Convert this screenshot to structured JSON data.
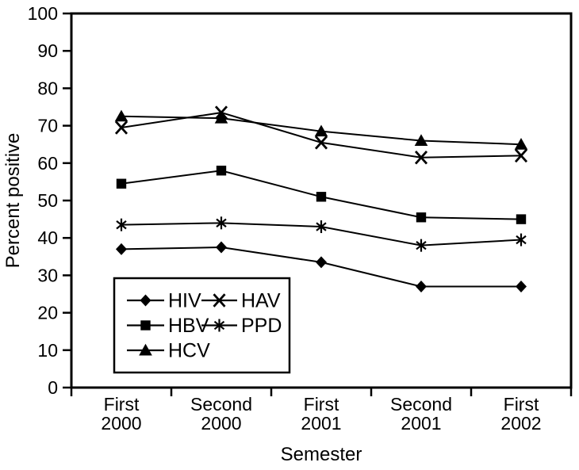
{
  "figure": {
    "background": "#ffffff",
    "ink_color": "#000000"
  },
  "chart_data": {
    "type": "line",
    "title": "",
    "xlabel": "Semester",
    "ylabel": "Percent positive",
    "ylim": [
      0,
      100
    ],
    "yticks": [
      0,
      10,
      20,
      30,
      40,
      50,
      60,
      70,
      80,
      90,
      100
    ],
    "grid": false,
    "categories": [
      [
        "First",
        "2000"
      ],
      [
        "Second",
        "2000"
      ],
      [
        "First",
        "2001"
      ],
      [
        "Second",
        "2001"
      ],
      [
        "First",
        "2002"
      ]
    ],
    "series": [
      {
        "name": "HIV",
        "marker": "diamond",
        "color": "#000000",
        "values": [
          37,
          37.5,
          33.5,
          27,
          27
        ]
      },
      {
        "name": "HBV",
        "marker": "square",
        "color": "#000000",
        "values": [
          54.5,
          58,
          51,
          45.5,
          45
        ]
      },
      {
        "name": "HCV",
        "marker": "triangle",
        "color": "#000000",
        "values": [
          72.5,
          72,
          68.5,
          66,
          65
        ]
      },
      {
        "name": "HAV",
        "marker": "x",
        "color": "#000000",
        "values": [
          69.5,
          73.5,
          65.5,
          61.5,
          62
        ]
      },
      {
        "name": "PPD",
        "marker": "asterisk",
        "color": "#000000",
        "values": [
          43.5,
          44,
          43,
          38,
          39.5
        ]
      }
    ],
    "legend": {
      "position": "inside-bottom-left",
      "columns": [
        [
          "HIV",
          "HBV",
          "HCV"
        ],
        [
          "HAV",
          "PPD"
        ]
      ]
    }
  }
}
